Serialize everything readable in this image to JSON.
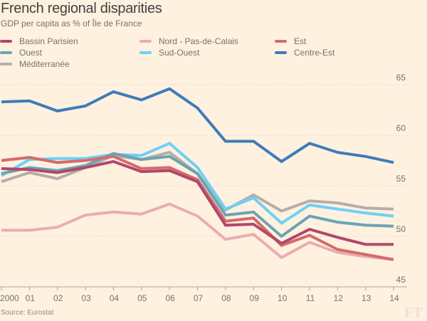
{
  "chart_data": {
    "type": "line",
    "title": "French regional disparities",
    "subtitle": "GDP per capita as % of Île de France",
    "xlabel": "",
    "ylabel": "",
    "x": [
      "2000",
      "01",
      "02",
      "03",
      "04",
      "05",
      "06",
      "07",
      "08",
      "09",
      "10",
      "11",
      "12",
      "13",
      "14"
    ],
    "ylim": [
      45,
      66
    ],
    "yticks": [
      45,
      50,
      55,
      60,
      65
    ],
    "grid": true,
    "legend_position": "top",
    "series": [
      {
        "name": "Méditerranée",
        "color": "#b6aea6",
        "values": [
          55.4,
          56.3,
          55.7,
          56.8,
          58.0,
          57.6,
          58.3,
          56.2,
          52.6,
          54.1,
          52.5,
          53.5,
          53.3,
          52.8,
          52.7
        ]
      },
      {
        "name": "Sud-Ouest",
        "color": "#6ed0f5",
        "values": [
          56.0,
          57.6,
          57.7,
          57.7,
          58.1,
          58.0,
          59.2,
          56.8,
          52.7,
          53.8,
          51.3,
          53.1,
          52.7,
          52.3,
          52.0
        ]
      },
      {
        "name": "Ouest",
        "color": "#6aa5b3",
        "values": [
          56.2,
          56.8,
          56.5,
          57.0,
          58.2,
          57.6,
          57.9,
          56.2,
          52.1,
          52.4,
          50.0,
          52.0,
          51.4,
          51.1,
          51.0
        ]
      },
      {
        "name": "Nord - Pas-de-Calais",
        "color": "#eaadaf",
        "values": [
          50.6,
          50.6,
          50.9,
          52.1,
          52.4,
          52.2,
          53.2,
          52.0,
          49.7,
          50.2,
          47.9,
          49.4,
          48.4,
          48.0,
          47.7
        ]
      },
      {
        "name": "Est",
        "color": "#d46b6b",
        "values": [
          57.5,
          57.8,
          57.3,
          57.5,
          57.9,
          56.7,
          56.8,
          55.6,
          51.5,
          51.8,
          49.1,
          50.1,
          48.7,
          48.2,
          47.7
        ]
      },
      {
        "name": "Bassin Parisien",
        "color": "#b0486b",
        "values": [
          56.7,
          56.6,
          56.3,
          56.8,
          57.4,
          56.4,
          56.5,
          55.4,
          51.1,
          51.2,
          49.3,
          50.7,
          49.9,
          49.2,
          49.2
        ]
      },
      {
        "name": "Centre-Est",
        "color": "#3f7bb8",
        "values": [
          63.3,
          63.4,
          62.4,
          62.9,
          64.3,
          63.5,
          64.6,
          62.7,
          59.4,
          59.4,
          57.4,
          59.2,
          58.3,
          57.9,
          57.3
        ]
      }
    ],
    "legend": [
      {
        "name": "Bassin Parisien",
        "color": "#b0486b"
      },
      {
        "name": "Nord - Pas-de-Calais",
        "color": "#eaadaf"
      },
      {
        "name": "Est",
        "color": "#d46b6b"
      },
      {
        "name": "Ouest",
        "color": "#6aa5b3"
      },
      {
        "name": "Sud-Ouest",
        "color": "#6ed0f5"
      },
      {
        "name": "Centre-Est",
        "color": "#3f7bb8"
      },
      {
        "name": "Méditerranée",
        "color": "#b6aea6"
      }
    ],
    "source": "Source: Eurostat",
    "logo": "FT"
  }
}
